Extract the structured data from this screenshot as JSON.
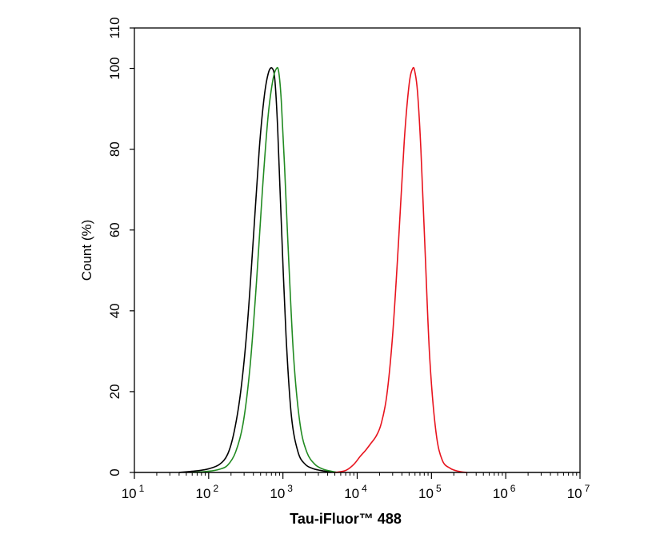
{
  "chart_data": {
    "type": "line",
    "xlabel": "Tau-iFluor™ 488",
    "ylabel": "Count  (%)",
    "xscale": "log",
    "xlim": [
      10,
      10000000
    ],
    "ylim": [
      0,
      110
    ],
    "x_ticks": [
      {
        "base": "10",
        "exp": "1",
        "value": 10
      },
      {
        "base": "10",
        "exp": "2",
        "value": 100
      },
      {
        "base": "10",
        "exp": "3",
        "value": 1000
      },
      {
        "base": "10",
        "exp": "4",
        "value": 10000
      },
      {
        "base": "10",
        "exp": "5",
        "value": 100000
      },
      {
        "base": "10",
        "exp": "6",
        "value": 1000000
      },
      {
        "base": "10",
        "exp": "7",
        "value": 10000000
      }
    ],
    "y_ticks": [
      0,
      20,
      40,
      60,
      80,
      100,
      110
    ],
    "grid": false,
    "legend": "none",
    "series": [
      {
        "color": "#000000",
        "x": [
          40,
          70,
          100,
          140,
          180,
          220,
          270,
          330,
          400,
          480,
          560,
          640,
          720,
          780,
          850,
          950,
          1100,
          1300,
          1600,
          2000,
          2500,
          3200,
          4000,
          5000
        ],
        "y": [
          0,
          0.4,
          0.9,
          2.0,
          4.5,
          10,
          20,
          36,
          58,
          80,
          93,
          99,
          100,
          97,
          85,
          62,
          34,
          14,
          5,
          2,
          1,
          0.5,
          0.2,
          0
        ]
      },
      {
        "color": "#228b22",
        "x": [
          60,
          100,
          140,
          180,
          230,
          290,
          360,
          440,
          530,
          630,
          730,
          820,
          880,
          950,
          1050,
          1200,
          1400,
          1700,
          2100,
          2700,
          3500,
          4500,
          5500
        ],
        "y": [
          0,
          0.3,
          0.8,
          1.8,
          5,
          12,
          26,
          47,
          70,
          88,
          97,
          100,
          99,
          92,
          76,
          52,
          28,
          12,
          5,
          2,
          0.8,
          0.3,
          0
        ]
      },
      {
        "color": "#e8141e",
        "x": [
          5000,
          7000,
          9000,
          11000,
          13000,
          15000,
          18000,
          21000,
          25000,
          30000,
          36000,
          43000,
          50000,
          56000,
          60000,
          65000,
          72000,
          82000,
          95000,
          115000,
          140000,
          180000,
          230000,
          300000
        ],
        "y": [
          0,
          0.5,
          2,
          4,
          5.5,
          7,
          9,
          12,
          19,
          34,
          57,
          82,
          96,
          100,
          99,
          94,
          80,
          55,
          28,
          10,
          3,
          1,
          0.3,
          0
        ]
      }
    ]
  }
}
